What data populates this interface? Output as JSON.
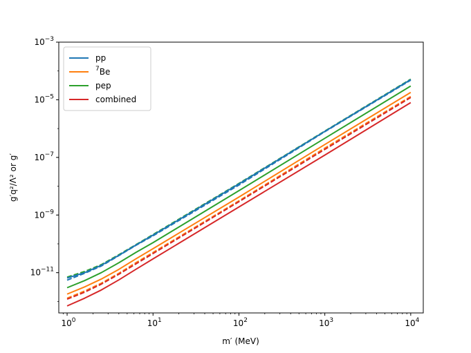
{
  "chart_data": {
    "type": "line",
    "title": "",
    "xlabel": "m′ (MeV)",
    "ylabel": "g′q²/Λ² or g′",
    "xscale": "log",
    "yscale": "log",
    "xlim": [
      0.8,
      14000
    ],
    "ylim": [
      4e-13,
      0.001
    ],
    "x_tick_labels": [
      "10^0",
      "10^1",
      "10^2",
      "10^3",
      "10^4"
    ],
    "y_tick_labels": [
      "10^-11",
      "10^-9",
      "10^-7",
      "10^-5",
      "10^-3"
    ],
    "grid": false,
    "legend_position": "top-left",
    "x": [
      1,
      1.6,
      2.5,
      4,
      6.3,
      10,
      100,
      1000,
      10000
    ],
    "series": [
      {
        "name": "pp",
        "color": "#1f77b4",
        "style": "solid",
        "values": [
          6.5e-12,
          1e-11,
          1.8e-11,
          4e-11,
          9e-11,
          2e-10,
          1.2e-08,
          8e-07,
          5e-05
        ]
      },
      {
        "name": "pp",
        "color": "#1f77b4",
        "style": "dashed",
        "values": [
          5.5e-12,
          9.5e-12,
          1.7e-11,
          3.9e-11,
          8.8e-11,
          1.9e-10,
          1.1e-08,
          7.8e-07,
          4.8e-05
        ]
      },
      {
        "name": "7Be",
        "color": "#ff7f0e",
        "style": "solid",
        "values": [
          1.8e-12,
          3.2e-12,
          6e-12,
          1.3e-11,
          3e-11,
          6.8e-11,
          4.2e-09,
          2.8e-07,
          1.8e-05
        ]
      },
      {
        "name": "7Be",
        "color": "#ff7f0e",
        "style": "dashed",
        "values": [
          1.3e-12,
          2.3e-12,
          4.3e-12,
          9.5e-12,
          2.2e-11,
          5e-11,
          3.1e-09,
          2.1e-07,
          1.3e-05
        ]
      },
      {
        "name": "pep",
        "color": "#2ca02c",
        "style": "solid",
        "values": [
          3e-12,
          5.3e-12,
          1e-11,
          2.2e-11,
          5e-11,
          1.1e-10,
          7e-09,
          4.6e-07,
          3e-05
        ]
      },
      {
        "name": "pep",
        "color": "#2ca02c",
        "style": "dashed",
        "values": [
          7e-12,
          1.1e-11,
          1.9e-11,
          4.2e-11,
          9.3e-11,
          2.1e-10,
          1.25e-08,
          8.2e-07,
          5.2e-05
        ]
      },
      {
        "name": "combined",
        "color": "#d62728",
        "style": "solid",
        "values": [
          7e-13,
          1.3e-12,
          2.5e-12,
          5.6e-12,
          1.3e-11,
          3e-11,
          1.9e-09,
          1.2e-07,
          8e-06
        ]
      },
      {
        "name": "combined",
        "color": "#d62728",
        "style": "dashed",
        "values": [
          1.2e-12,
          2.1e-12,
          4e-12,
          8.8e-12,
          2e-11,
          4.6e-11,
          2.9e-09,
          1.9e-07,
          1.2e-05
        ]
      }
    ],
    "legend": [
      {
        "label": "pp",
        "color": "#1f77b4"
      },
      {
        "label": "7Be",
        "color": "#ff7f0e"
      },
      {
        "label": "pep",
        "color": "#2ca02c"
      },
      {
        "label": "combined",
        "color": "#d62728"
      }
    ]
  }
}
